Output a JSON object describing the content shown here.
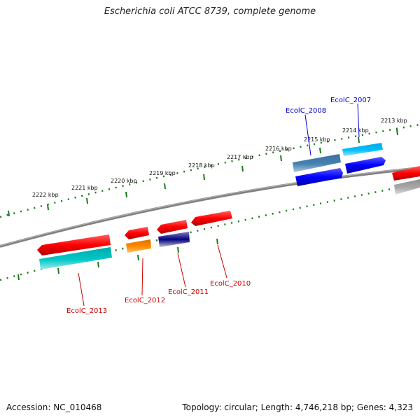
{
  "title": "Escherichia coli ATCC 8739, complete genome",
  "footer": {
    "accession": "Accession: NC_010468",
    "topology": "Topology: circular; Length: 4,746,218 bp; Genes: 4,323"
  },
  "ticks": {
    "labels": [
      "2213 kbp",
      "2214 kbp",
      "2215 kbp",
      "2216 kbp",
      "2217 kbp",
      "2218 kbp",
      "2219 kbp",
      "2220 kbp",
      "2221 kbp",
      "2222 kbp"
    ]
  },
  "genes": {
    "top_labels": [
      "EcolC_2007",
      "EcolC_2008"
    ],
    "bottom_labels": [
      "EcolC_2010",
      "EcolC_2011",
      "EcolC_2012",
      "EcolC_2013"
    ]
  },
  "colors": {
    "top_label": "#0000cc",
    "bottom_label": "#cc0000",
    "tick": "#1a7a1a",
    "backbone": "#808080"
  }
}
